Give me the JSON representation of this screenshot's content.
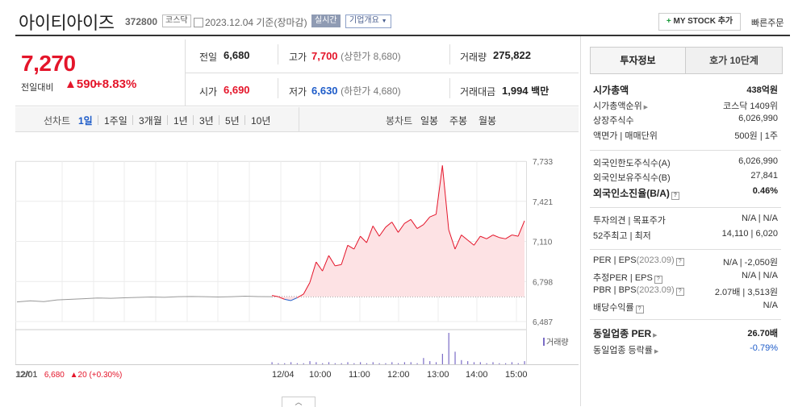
{
  "header": {
    "name": "아이티아이즈",
    "code": "372800",
    "market": "코스닥",
    "date": "2023.12.04 기준(장마감)",
    "realtime": "실시간",
    "company": "기업개요",
    "mystock": "MY STOCK 추가",
    "quick_order": "빠른주문"
  },
  "price": {
    "current": "7,270",
    "change_label": "전일대비",
    "change": "590",
    "change_pct": "+8.83%"
  },
  "summary": {
    "prev_label": "전일",
    "prev": "6,680",
    "open_label": "시가",
    "open": "6,690",
    "high_label": "고가",
    "high": "7,700",
    "upper_limit": "(상한가 8,680)",
    "low_label": "저가",
    "low": "6,630",
    "lower_limit": "(하한가 4,680)",
    "volume_label": "거래량",
    "volume": "275,822",
    "amount_label": "거래대금",
    "amount": "1,994",
    "amount_unit": "백만"
  },
  "periods": {
    "label": "선차트",
    "items": [
      "1일",
      "1주일",
      "3개월",
      "1년",
      "3년",
      "5년",
      "10년"
    ],
    "selected": "1일",
    "candle_label": "봉차트",
    "candle_items": [
      "일봉",
      "주봉",
      "월봉"
    ]
  },
  "chart_data": {
    "type": "line",
    "x_ticks": [
      "12/01",
      "12/04",
      "10:00",
      "11:00",
      "12:00",
      "13:00",
      "14:00",
      "15:00"
    ],
    "y_ticks": [
      "7,733",
      "7,421",
      "7,110",
      "6,798",
      "6,487"
    ],
    "ylim": [
      6487,
      7733
    ],
    "prev_close": 6680,
    "series": [
      {
        "values": [
          6640,
          6648,
          6642,
          6655,
          6660,
          6665,
          6670,
          6668,
          6672,
          6675,
          6678,
          6676,
          6680,
          6682,
          6680,
          6678,
          6680,
          6684,
          6681,
          6680
        ]
      },
      {
        "values": [
          6690,
          6680,
          6660,
          6650,
          6672,
          6700,
          6790,
          6950,
          6880,
          7000,
          6920,
          6930,
          7080,
          7050,
          7150,
          7100,
          7230,
          7150,
          7220,
          7260,
          7180,
          7250,
          7280,
          7210,
          7240,
          7300,
          7320,
          7700,
          7200,
          7050,
          7160,
          7120,
          7080,
          7150,
          7130,
          7160,
          7140,
          7130,
          7160,
          7150,
          7270
        ]
      }
    ],
    "volume_label": "거래량",
    "volumes": [
      2,
      1,
      1,
      2,
      1,
      1,
      3,
      2,
      1,
      2,
      1,
      1,
      2,
      1,
      2,
      1,
      2,
      1,
      1,
      2,
      1,
      2,
      2,
      1,
      6,
      3,
      2,
      10,
      30,
      12,
      4,
      3,
      2,
      2,
      1,
      2,
      1,
      1,
      2,
      1,
      3
    ],
    "bottom_stat": {
      "date": "12/01",
      "price": "6,680",
      "change": "20",
      "pct": "(+0.30%)"
    }
  },
  "info": {
    "tab_active": "투자정보",
    "tab_inactive": "호가 10단계",
    "rows": [
      {
        "label": "시가총액",
        "value": "438억원",
        "bold": true
      },
      {
        "label": "시가총액순위",
        "value": "코스닥 1409위",
        "arrow": true
      },
      {
        "label": "상장주식수",
        "value": "6,026,990"
      },
      {
        "label": "액면가 | 매매단위",
        "value": "500원 | 1주"
      },
      {
        "label": "외국인한도주식수(A)",
        "value": "6,026,990"
      },
      {
        "label": "외국인보유주식수(B)",
        "value": "27,841"
      },
      {
        "label": "외국인소진율(B/A)",
        "value": "0.46%",
        "bold": true,
        "q": true
      },
      {
        "label": "투자의견 | 목표주가",
        "value": "N/A | N/A"
      },
      {
        "label": "52주최고 | 최저",
        "value": "14,110 | 6,020"
      },
      {
        "label": "PER | EPS",
        "sub": "(2023.09)",
        "value": "N/A | -2,050원",
        "q": true
      },
      {
        "label": "추정PER | EPS",
        "value": "N/A | N/A",
        "q": true
      },
      {
        "label": "PBR | BPS",
        "sub": "(2023.09)",
        "value": "2.07배 | 3,513원",
        "q": true
      },
      {
        "label": "배당수익률",
        "value": "N/A",
        "q": true
      },
      {
        "label": "동일업종 PER",
        "value": "26.70배",
        "bold": true,
        "arrow": true
      },
      {
        "label": "동일업종 등락률",
        "value": "-0.79%",
        "arrow": true,
        "blue": true
      }
    ]
  },
  "colors": {
    "up": "#e4152a",
    "down": "#1e5cc9",
    "line": "#e4152a",
    "fill": "#fde2e4",
    "prev": "#999999"
  }
}
